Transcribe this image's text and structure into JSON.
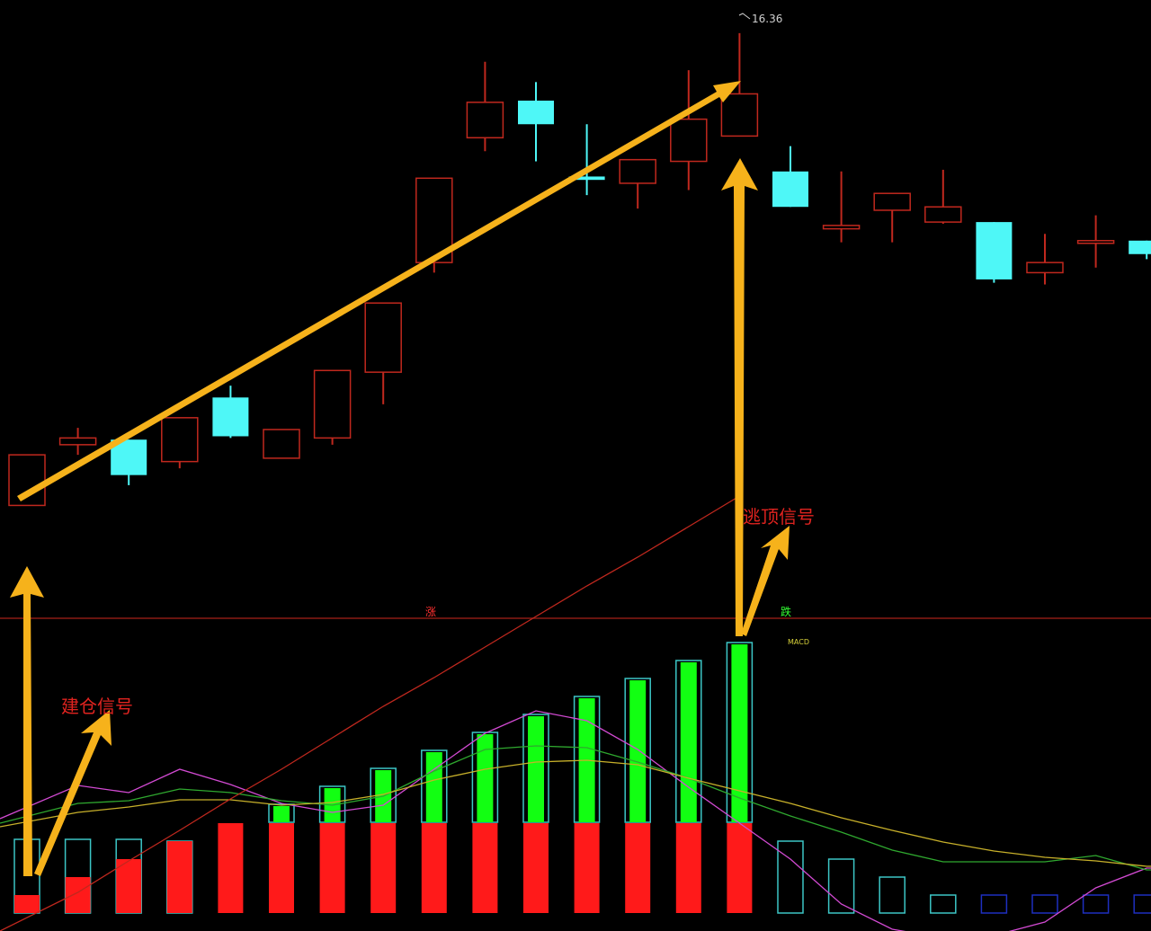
{
  "chart_data": [
    {
      "type": "candlestick",
      "title": "",
      "xlabel": "",
      "ylabel": "",
      "ylim": [
        13.2,
        16.45
      ],
      "max_label": "16.36",
      "annotations": [
        "建仓信号",
        "逃顶信号"
      ],
      "colors": {
        "up": "#c0281e",
        "down": "#4ef7f7",
        "arrow": "#f6b21b"
      },
      "candles": [
        {
          "o": 13.56,
          "h": 13.86,
          "l": 13.56,
          "c": 13.86
        },
        {
          "o": 13.92,
          "h": 14.02,
          "l": 13.86,
          "c": 13.96
        },
        {
          "o": 13.95,
          "h": 13.95,
          "l": 13.68,
          "c": 13.74
        },
        {
          "o": 13.82,
          "h": 14.08,
          "l": 13.78,
          "c": 14.08
        },
        {
          "o": 14.2,
          "h": 14.27,
          "l": 13.96,
          "c": 13.97
        },
        {
          "o": 13.84,
          "h": 14.01,
          "l": 13.84,
          "c": 14.01
        },
        {
          "o": 13.96,
          "h": 14.36,
          "l": 13.92,
          "c": 14.36
        },
        {
          "o": 14.35,
          "h": 14.76,
          "l": 14.16,
          "c": 14.76
        },
        {
          "o": 15.0,
          "h": 15.5,
          "l": 14.94,
          "c": 15.5
        },
        {
          "o": 15.74,
          "h": 16.19,
          "l": 15.66,
          "c": 15.95
        },
        {
          "o": 15.96,
          "h": 16.07,
          "l": 15.6,
          "c": 15.82
        },
        {
          "o": 15.51,
          "h": 15.82,
          "l": 15.4,
          "c": 15.49
        },
        {
          "o": 15.47,
          "h": 15.61,
          "l": 15.32,
          "c": 15.61
        },
        {
          "o": 15.6,
          "h": 16.14,
          "l": 15.43,
          "c": 15.85
        },
        {
          "o": 15.75,
          "h": 16.36,
          "l": 15.75,
          "c": 16.0
        },
        {
          "o": 15.54,
          "h": 15.69,
          "l": 15.33,
          "c": 15.33
        },
        {
          "o": 15.2,
          "h": 15.54,
          "l": 15.12,
          "c": 15.22
        },
        {
          "o": 15.31,
          "h": 15.41,
          "l": 15.12,
          "c": 15.41
        },
        {
          "o": 15.24,
          "h": 15.55,
          "l": 15.23,
          "c": 15.33
        },
        {
          "o": 15.24,
          "h": 15.24,
          "l": 14.88,
          "c": 14.9
        },
        {
          "o": 14.94,
          "h": 15.17,
          "l": 14.87,
          "c": 15.0
        },
        {
          "o": 15.13,
          "h": 15.28,
          "l": 14.97,
          "c": 15.13
        },
        {
          "o": 15.13,
          "h": 15.13,
          "l": 15.02,
          "c": 15.05
        }
      ]
    },
    {
      "type": "bar",
      "title": "",
      "label": "MACD",
      "zero_labels": [
        "涨",
        "跌"
      ],
      "colors": {
        "red": "#ff1a1a",
        "green": "#12ff12",
        "outline": "#3cc6c6",
        "navy": "#1e2fc0"
      },
      "bars": [
        {
          "red": 20,
          "outline": 82
        },
        {
          "red": 40,
          "outline": 82
        },
        {
          "red": 60,
          "outline": 82
        },
        {
          "red": 80,
          "outline": 80
        },
        {
          "red": 100
        },
        {
          "red": 100,
          "green": 20
        },
        {
          "red": 100,
          "green": 40
        },
        {
          "red": 100,
          "green": 60
        },
        {
          "red": 100,
          "green": 80
        },
        {
          "red": 100,
          "green": 100
        },
        {
          "red": 100,
          "green": 120
        },
        {
          "red": 100,
          "green": 140
        },
        {
          "red": 100,
          "green": 160
        },
        {
          "red": 100,
          "green": 180
        },
        {
          "red": 100,
          "green": 200
        },
        {
          "outline": 80
        },
        {
          "outline": 60
        },
        {
          "outline": 40
        },
        {
          "outline": 20
        },
        {
          "outline": 20,
          "navy": true
        },
        {
          "outline": 20,
          "navy": true
        },
        {
          "outline": 20,
          "navy": true
        },
        {
          "outline": 20,
          "navy": true
        }
      ],
      "series": [
        {
          "color": "#d24ad2",
          "values": [
            105,
            142,
            134,
            160,
            143,
            122,
            112,
            120,
            160,
            200,
            225,
            214,
            182,
            140,
            100,
            60,
            10,
            -18,
            -28,
            -25,
            -10,
            28,
            50
          ]
        },
        {
          "color": "#2fa82f",
          "values": [
            100,
            122,
            125,
            138,
            134,
            125,
            120,
            130,
            158,
            182,
            186,
            184,
            168,
            150,
            128,
            108,
            90,
            70,
            57,
            57,
            57,
            64,
            48
          ]
        },
        {
          "color": "#c7b02a",
          "values": [
            96,
            112,
            118,
            126,
            126,
            120,
            123,
            132,
            148,
            160,
            168,
            170,
            165,
            150,
            136,
            122,
            106,
            92,
            79,
            69,
            62,
            58,
            52
          ]
        },
        {
          "color": "#c0281e",
          "values": [
            -20,
            23,
            58,
            92,
            127,
            160,
            195,
            230,
            262,
            296,
            330,
            364,
            396,
            430,
            464,
            null,
            null,
            null,
            null,
            null,
            null,
            null,
            null
          ]
        }
      ]
    }
  ]
}
